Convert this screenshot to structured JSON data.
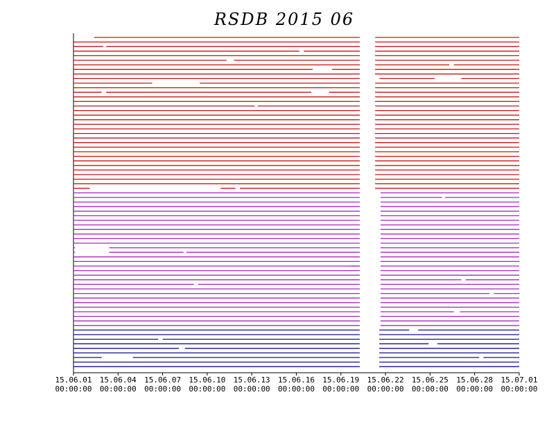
{
  "chart_data": {
    "type": "availability",
    "title": "RSDB 2015 06",
    "xlim": [
      0,
      30
    ],
    "xticks": [
      {
        "value": 0,
        "label": "15.06.01",
        "time": "00:00:00"
      },
      {
        "value": 3,
        "label": "15.06.04",
        "time": "00:00:00"
      },
      {
        "value": 6,
        "label": "15.06.07",
        "time": "00:00:00"
      },
      {
        "value": 9,
        "label": "15.06.10",
        "time": "00:00:00"
      },
      {
        "value": 12,
        "label": "15.06.13",
        "time": "00:00:00"
      },
      {
        "value": 15,
        "label": "15.06.16",
        "time": "00:00:00"
      },
      {
        "value": 18,
        "label": "15.06.19",
        "time": "00:00:00"
      },
      {
        "value": 21,
        "label": "15.06.22",
        "time": "00:00:00"
      },
      {
        "value": 24,
        "label": "15.06.25",
        "time": "00:00:00"
      },
      {
        "value": 27,
        "label": "15.06.28",
        "time": "00:00:00"
      },
      {
        "value": 30,
        "label": "15.07.01",
        "time": "00:00:00"
      }
    ],
    "groups": [
      {
        "color": "#cc1010",
        "rows": [
          [
            [
              1.4,
              19.27
            ],
            [
              20.3,
              30
            ]
          ],
          [
            [
              0,
              19.27
            ],
            [
              20.3,
              30
            ]
          ],
          [
            [
              0,
              2
            ],
            [
              2.2,
              19.27
            ],
            [
              20.3,
              30
            ]
          ],
          [
            [
              0,
              15.2
            ],
            [
              15.5,
              19.27
            ],
            [
              20.3,
              30
            ]
          ],
          [
            [
              0,
              19.27
            ],
            [
              20.3,
              30
            ]
          ],
          [
            [
              0,
              10.3
            ],
            [
              10.8,
              19.27
            ],
            [
              20.3,
              30
            ]
          ],
          [
            [
              0,
              19.27
            ],
            [
              20.3,
              25.3
            ],
            [
              25.6,
              30
            ]
          ],
          [
            [
              0,
              16.1
            ],
            [
              17.4,
              19.27
            ],
            [
              20.3,
              30
            ]
          ],
          [
            [
              0,
              19.27
            ],
            [
              20.3,
              30
            ]
          ],
          [
            [
              0,
              19.27
            ],
            [
              20.6,
              24.3
            ],
            [
              26.1,
              30
            ]
          ],
          [
            [
              0,
              5.3
            ],
            [
              8.5,
              19.27
            ],
            [
              20.3,
              30
            ]
          ],
          [
            [
              0,
              19.27
            ],
            [
              20.3,
              30
            ]
          ],
          [
            [
              0,
              1.9
            ],
            [
              2.2,
              16
            ],
            [
              17.2,
              19.27
            ],
            [
              20.3,
              30
            ]
          ],
          [
            [
              0,
              19.27
            ],
            [
              20.3,
              30
            ]
          ],
          [
            [
              0,
              19.27
            ],
            [
              20.3,
              30
            ]
          ],
          [
            [
              0,
              12.2
            ],
            [
              12.4,
              19.27
            ],
            [
              20.3,
              30
            ]
          ],
          [
            [
              0,
              19.27
            ],
            [
              20.3,
              30
            ]
          ],
          [
            [
              0,
              19.27
            ],
            [
              20.3,
              30
            ]
          ],
          [
            [
              0,
              19.27
            ],
            [
              20.3,
              30
            ]
          ],
          [
            [
              0,
              19.27
            ],
            [
              20.3,
              30
            ]
          ],
          [
            [
              0,
              19.27
            ],
            [
              20.3,
              30
            ]
          ],
          [
            [
              0,
              19.27
            ],
            [
              20.3,
              30
            ]
          ],
          [
            [
              0,
              19.27
            ],
            [
              20.3,
              30
            ]
          ],
          [
            [
              0,
              19.27
            ],
            [
              20.3,
              30
            ]
          ],
          [
            [
              0,
              19.27
            ],
            [
              20.3,
              30
            ]
          ],
          [
            [
              0,
              19.27
            ],
            [
              20.3,
              30
            ]
          ],
          [
            [
              0,
              19.27
            ],
            [
              20.3,
              30
            ]
          ],
          [
            [
              0,
              19.27
            ],
            [
              20.3,
              30
            ]
          ],
          [
            [
              0,
              19.27
            ],
            [
              20.3,
              30
            ]
          ],
          [
            [
              0,
              19.27
            ],
            [
              20.3,
              30
            ]
          ],
          [
            [
              0,
              19.27
            ],
            [
              20.3,
              30
            ]
          ],
          [
            [
              0,
              19.27
            ],
            [
              20.3,
              30
            ]
          ],
          [
            [
              0,
              19.27
            ],
            [
              20.3,
              30
            ]
          ],
          [
            [
              0,
              1.1
            ],
            [
              9.9,
              10.9
            ],
            [
              11.2,
              19.27
            ],
            [
              20.3,
              30
            ]
          ]
        ]
      },
      {
        "color": "#a424c0",
        "rows": [
          [
            [
              0,
              19.27
            ],
            [
              20.67,
              30
            ]
          ],
          [
            [
              0,
              19.27
            ],
            [
              20.67,
              24.8
            ],
            [
              25,
              30
            ]
          ],
          [
            [
              0,
              19.27
            ],
            [
              20.67,
              30
            ]
          ],
          [
            [
              0,
              19.27
            ],
            [
              20.67,
              30
            ]
          ],
          [
            [
              0,
              19.27
            ],
            [
              20.67,
              30
            ]
          ],
          [
            [
              0,
              19.27
            ],
            [
              20.67,
              30
            ]
          ],
          [
            [
              0,
              19.27
            ],
            [
              20.67,
              30
            ]
          ],
          [
            [
              0,
              19.27
            ],
            [
              20.67,
              30
            ]
          ],
          [
            [
              0,
              19.27
            ],
            [
              20.67,
              30
            ]
          ],
          [
            [
              0,
              19.27
            ],
            [
              20.67,
              30
            ]
          ],
          [
            [
              0,
              19.27
            ],
            [
              20.67,
              30
            ]
          ],
          [
            [
              0,
              19.27
            ],
            [
              20.67,
              30
            ]
          ],
          [
            [
              0,
              0.1
            ],
            [
              2.4,
              19.27
            ],
            [
              20.67,
              30
            ]
          ],
          [
            [
              0,
              0.1
            ],
            [
              2.4,
              7.4
            ],
            [
              7.6,
              19.27
            ],
            [
              20.67,
              30
            ]
          ],
          [
            [
              0,
              19.27
            ],
            [
              20.67,
              30
            ]
          ],
          [
            [
              0,
              19.27
            ],
            [
              20.67,
              30
            ]
          ],
          [
            [
              0,
              19.27
            ],
            [
              18.7,
              19.27
            ],
            [
              20.67,
              30
            ]
          ],
          [
            [
              0,
              19.27
            ],
            [
              20.67,
              30
            ]
          ],
          [
            [
              0,
              19.27
            ],
            [
              20.67,
              30
            ]
          ],
          [
            [
              0,
              19.27
            ],
            [
              20.67,
              26.1
            ],
            [
              26.4,
              30
            ]
          ],
          [
            [
              0,
              8.1
            ],
            [
              8.4,
              19.27
            ],
            [
              20.67,
              30
            ]
          ],
          [
            [
              0,
              19.27
            ],
            [
              20.67,
              30
            ]
          ],
          [
            [
              0,
              19.27
            ],
            [
              20.67,
              28
            ],
            [
              28.3,
              30
            ]
          ],
          [
            [
              0,
              19.27
            ],
            [
              20.67,
              30
            ]
          ],
          [
            [
              0,
              19.27
            ],
            [
              20.67,
              30
            ]
          ],
          [
            [
              0,
              19.27
            ],
            [
              20.67,
              30
            ]
          ],
          [
            [
              0,
              19.27
            ],
            [
              20.67,
              25.6
            ],
            [
              26.0,
              30
            ]
          ],
          [
            [
              0,
              19.27
            ],
            [
              20.67,
              30
            ]
          ],
          [
            [
              0,
              19.27
            ],
            [
              20.67,
              30
            ]
          ],
          [
            [
              0,
              19.27
            ],
            [
              20.67,
              30
            ]
          ]
        ]
      },
      {
        "color": "#101090",
        "rows": [
          [
            [
              0,
              19.27
            ],
            [
              20.58,
              22.6
            ],
            [
              23.2,
              30
            ]
          ],
          [
            [
              0,
              19.27
            ],
            [
              20.58,
              30
            ]
          ],
          [
            [
              0,
              5.7
            ],
            [
              6,
              19.27
            ],
            [
              20.58,
              30
            ]
          ],
          [
            [
              0,
              19.27
            ],
            [
              20.58,
              23.9
            ],
            [
              24.5,
              30
            ]
          ],
          [
            [
              0,
              7.1
            ],
            [
              7.5,
              19.27
            ],
            [
              20.58,
              30
            ]
          ],
          [
            [
              0,
              19.27
            ],
            [
              20.58,
              30
            ]
          ],
          [
            [
              0,
              1.9
            ],
            [
              4,
              19.27
            ],
            [
              20.58,
              27.3
            ],
            [
              27.6,
              30
            ]
          ],
          [
            [
              0,
              19.27
            ],
            [
              20.58,
              30
            ]
          ],
          [
            [
              0,
              19.27
            ],
            [
              20.58,
              30
            ]
          ]
        ]
      }
    ]
  }
}
